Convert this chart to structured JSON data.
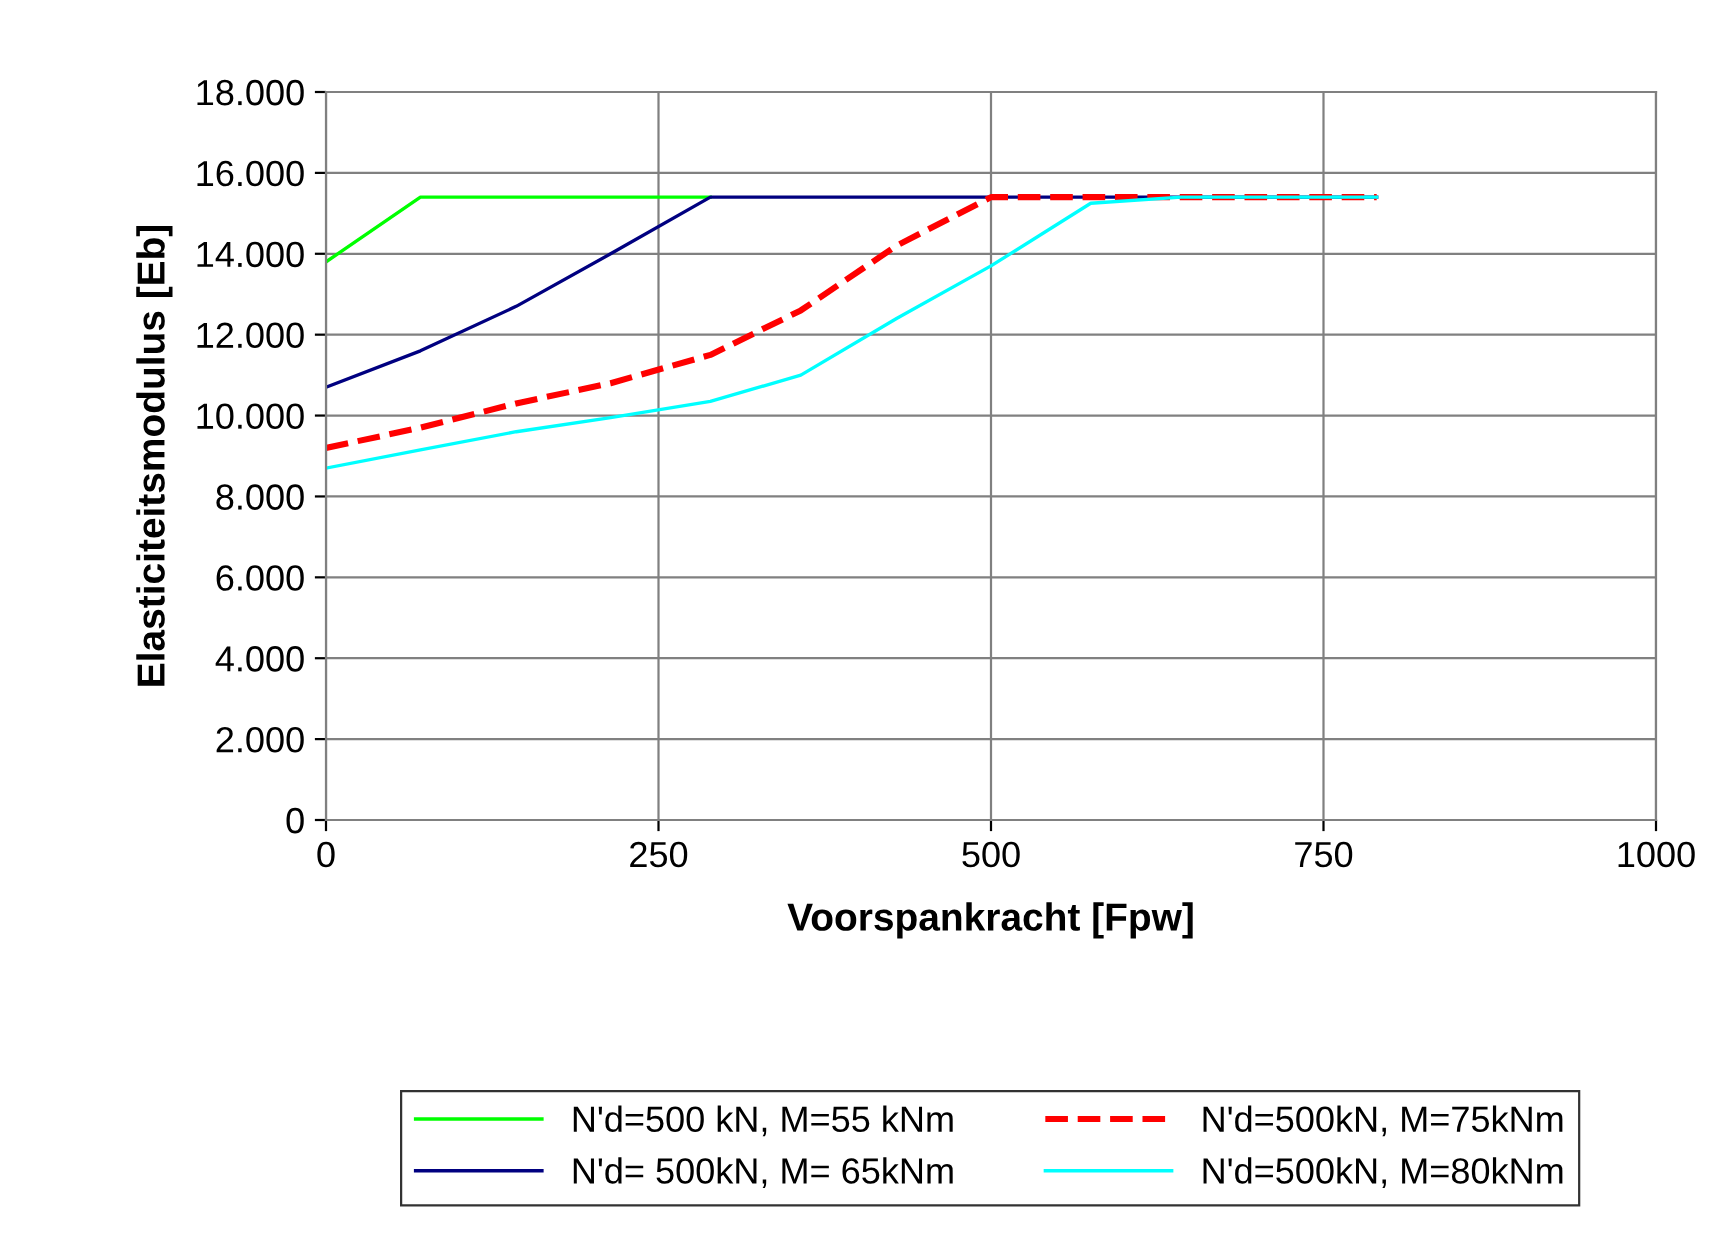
{
  "chart_data": {
    "type": "line",
    "xlabel": "Voorspankracht [Fpw]",
    "ylabel": "Elasticiteitsmodulus [Eb]",
    "xlim": [
      0,
      1000
    ],
    "xticks": [
      0,
      250,
      500,
      750,
      1000
    ],
    "ylim": [
      0,
      18000
    ],
    "yticks": [
      0,
      {
        "value": 2000,
        "label": "2.000"
      },
      {
        "value": 4000,
        "label": "4.000"
      },
      {
        "value": 6000,
        "label": "6.000"
      },
      {
        "value": 8000,
        "label": "8.000"
      },
      {
        "value": 10000,
        "label": "10.000"
      },
      {
        "value": 12000,
        "label": "12.000"
      },
      {
        "value": 14000,
        "label": "14.000"
      },
      {
        "value": 16000,
        "label": "16.000"
      },
      {
        "value": 18000,
        "label": "18.000"
      }
    ],
    "grid": true,
    "legend": "bottom",
    "marker": "none",
    "series": [
      {
        "name": "N'd=500 kN, M=55 kNm",
        "color": "#00ff00",
        "line_style": "solid",
        "x": [
          0,
          71,
          143,
          214,
          289
        ],
        "values": [
          13800,
          15400,
          15400,
          15400,
          15400
        ]
      },
      {
        "name": "N'd= 500kN, M= 65kNm",
        "color": "#000080",
        "line_style": "solid",
        "x": [
          0,
          71,
          143,
          214,
          289,
          357,
          429,
          500,
          571,
          643,
          714,
          790
        ],
        "values": [
          10700,
          11600,
          12700,
          14000,
          15400,
          15400,
          15400,
          15400,
          15400,
          15400,
          15400,
          15400
        ]
      },
      {
        "name": "N'd=500kN, M=75kNm",
        "color": "#ff0000",
        "line_style": "dashed",
        "x": [
          0,
          71,
          143,
          214,
          289,
          357,
          429,
          500,
          571,
          643,
          714,
          790
        ],
        "values": [
          9200,
          9700,
          10300,
          10800,
          11500,
          12600,
          14200,
          15400,
          15400,
          15400,
          15400,
          15400
        ]
      },
      {
        "name": "N'd=500kN, M=80kNm",
        "color": "#00ffff",
        "line_style": "solid",
        "x": [
          0,
          71,
          143,
          214,
          289,
          357,
          429,
          500,
          575,
          643,
          714,
          790
        ],
        "values": [
          8700,
          9150,
          9600,
          9950,
          10350,
          11000,
          12400,
          13700,
          15250,
          15400,
          15400,
          15400
        ]
      }
    ]
  }
}
